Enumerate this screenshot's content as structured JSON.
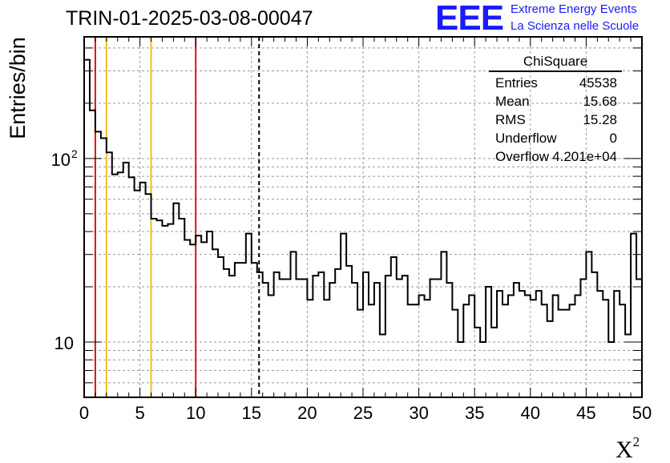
{
  "title": "TRIN-01-2025-03-08-00047",
  "logo": {
    "mark": "EEE",
    "line1": "Extreme Energy Events",
    "line2": "La Scienza nelle Scuole"
  },
  "stats": {
    "title": "ChiSquare",
    "rows": [
      {
        "key": "Entries",
        "value": "45538"
      },
      {
        "key": "Mean",
        "value": "15.68"
      },
      {
        "key": "RMS",
        "value": "15.28"
      },
      {
        "key": "Underflow",
        "value": "0"
      },
      {
        "key": "Overflow",
        "value": "4.201e+04"
      }
    ]
  },
  "chart_data": {
    "type": "histogram",
    "xlabel": "X",
    "xlabel_sup": "2",
    "ylabel": "Entries/bin",
    "xlim": [
      0,
      50
    ],
    "ylim": [
      5,
      460
    ],
    "yscale": "log",
    "grid": true,
    "bin_width": 0.5,
    "x_ticks": [
      0,
      5,
      10,
      15,
      20,
      25,
      30,
      35,
      40,
      45,
      50
    ],
    "y_tick_labels": [
      {
        "value": 10,
        "base": "10",
        "exp": ""
      },
      {
        "value": 100,
        "base": "10",
        "exp": "2"
      }
    ],
    "values": [
      345,
      183,
      140,
      129,
      108,
      82,
      84,
      95,
      79,
      67,
      74,
      64,
      47,
      46,
      43,
      44,
      57,
      47,
      36,
      34,
      38,
      35,
      40,
      32,
      29,
      25,
      23,
      27,
      27,
      39,
      27,
      24,
      21,
      18,
      24,
      22,
      22,
      31,
      22,
      22,
      17,
      23,
      24,
      17,
      21,
      25,
      39,
      26,
      21,
      15,
      24,
      16,
      21,
      11,
      23,
      29,
      22,
      23,
      16,
      16,
      18,
      17,
      22,
      22,
      31,
      21,
      15,
      10,
      16,
      18,
      12,
      10,
      20,
      12,
      19,
      16,
      18,
      21,
      19,
      18,
      17,
      19,
      16,
      13,
      18,
      15,
      15,
      16,
      18,
      22,
      31,
      24,
      19,
      17,
      10,
      19,
      16,
      11,
      39,
      22
    ],
    "markers": [
      {
        "x": 1,
        "color": "#dd1111",
        "style": "solid"
      },
      {
        "x": 2,
        "color": "#f0c020",
        "style": "solid"
      },
      {
        "x": 6,
        "color": "#f0c020",
        "style": "solid"
      },
      {
        "x": 10,
        "color": "#dd1111",
        "style": "solid"
      },
      {
        "x": 15.68,
        "color": "#000000",
        "style": "dashed"
      }
    ]
  }
}
